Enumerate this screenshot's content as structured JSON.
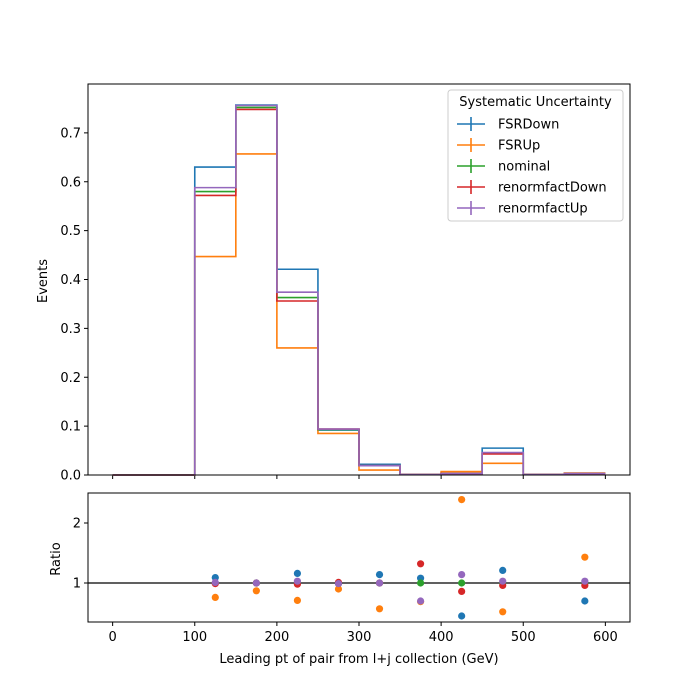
{
  "chart_data": {
    "type": "histogram-with-ratio",
    "bins": [
      [
        0,
        100
      ],
      [
        100,
        150
      ],
      [
        150,
        200
      ],
      [
        200,
        250
      ],
      [
        250,
        300
      ],
      [
        300,
        350
      ],
      [
        350,
        400
      ],
      [
        400,
        450
      ],
      [
        450,
        500
      ],
      [
        500,
        550
      ],
      [
        550,
        600
      ]
    ],
    "main": {
      "ylabel": "Events",
      "ylim": [
        0,
        0.8
      ],
      "yticks": [
        0.0,
        0.1,
        0.2,
        0.3,
        0.4,
        0.5,
        0.6,
        0.7
      ],
      "ytick_labels": [
        "0.0",
        "0.1",
        "0.2",
        "0.3",
        "0.4",
        "0.5",
        "0.6",
        "0.7"
      ]
    },
    "ratio": {
      "ylabel": "Ratio",
      "ylim": [
        0.35,
        2.5
      ],
      "yticks": [
        1,
        2
      ],
      "ytick_labels": [
        "1",
        "2"
      ],
      "reference_line": 1,
      "x_centers": [
        125,
        175,
        225,
        275,
        325,
        375,
        425,
        475,
        575
      ]
    },
    "xlabel": "Leading pt of pair from l+j collection (GeV)",
    "xlim": [
      -30,
      630
    ],
    "xticks": [
      0,
      100,
      200,
      300,
      400,
      500,
      600
    ],
    "xtick_labels": [
      "0",
      "100",
      "200",
      "300",
      "400",
      "500",
      "600"
    ],
    "legend": {
      "title": "Systematic Uncertainty",
      "position": "top-right"
    },
    "series": [
      {
        "name": "FSRDown",
        "color": "#1f77b4",
        "values": [
          0,
          0.63,
          0.757,
          0.421,
          0.092,
          0.022,
          0.001,
          0.003,
          0.055,
          0.001,
          0.003
        ],
        "ratio": [
          1.09,
          1.0,
          1.16,
          0.99,
          1.14,
          1.08,
          0.45,
          1.21,
          0.7
        ]
      },
      {
        "name": "FSRUp",
        "color": "#ff7f0e",
        "values": [
          0,
          0.447,
          0.657,
          0.26,
          0.085,
          0.01,
          0.001,
          0.007,
          0.024,
          0.001,
          0.004
        ],
        "ratio": [
          0.76,
          0.87,
          0.71,
          0.9,
          0.57,
          0.69,
          2.39,
          0.52,
          1.43
        ]
      },
      {
        "name": "nominal",
        "color": "#2ca02c",
        "values": [
          0,
          0.58,
          0.752,
          0.363,
          0.093,
          0.019,
          0.001,
          0.003,
          0.045,
          0.001,
          0.003
        ],
        "ratio": [
          1.0,
          1.0,
          1.0,
          1.0,
          1.0,
          1.0,
          1.0,
          1.0,
          1.0
        ]
      },
      {
        "name": "renormfactDown",
        "color": "#d62728",
        "values": [
          0,
          0.572,
          0.748,
          0.356,
          0.094,
          0.019,
          0.001,
          0.003,
          0.043,
          0.001,
          0.003
        ],
        "ratio": [
          0.99,
          1.0,
          0.98,
          1.01,
          1.0,
          1.32,
          0.86,
          0.96,
          0.96
        ]
      },
      {
        "name": "renormfactUp",
        "color": "#9467bd",
        "values": [
          0,
          0.588,
          0.756,
          0.374,
          0.094,
          0.019,
          0.001,
          0.003,
          0.046,
          0.001,
          0.003
        ],
        "ratio": [
          1.01,
          1.0,
          1.03,
          0.99,
          1.0,
          0.7,
          1.14,
          1.03,
          1.03
        ]
      }
    ]
  }
}
